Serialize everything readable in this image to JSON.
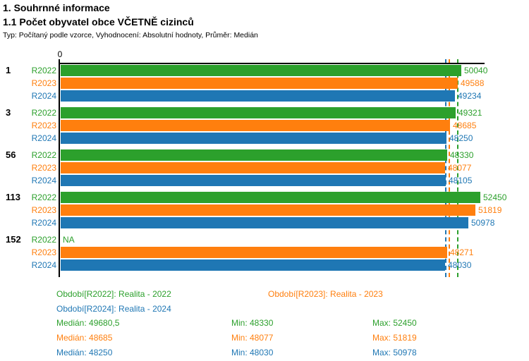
{
  "page": {
    "title_line1": "1. Souhrnné informace",
    "title_line2": "1.1 Počet obyvatel obce VČETNĚ cizinců",
    "subtitle": "Typ: Počítaný podle vzorce, Vyhodnocení: Absolutní hodnoty, Průměr: Medián"
  },
  "chart_data": {
    "type": "bar",
    "orientation": "horizontal",
    "x_origin_label": "0",
    "xlim": [
      0,
      53000
    ],
    "grid": false,
    "categories": [
      "1",
      "3",
      "56",
      "113",
      "152"
    ],
    "na_text": "NA",
    "series": [
      {
        "name": "R2022",
        "color": "#2ca02c",
        "values": [
          50040,
          49321,
          48330,
          52450,
          null
        ],
        "median": 49680.5,
        "min": 48330,
        "max": 52450
      },
      {
        "name": "R2023",
        "color": "#ff7f0e",
        "values": [
          49588,
          48685,
          48077,
          51819,
          48271
        ],
        "median": 48685,
        "min": 48077,
        "max": 51819
      },
      {
        "name": "R2024",
        "color": "#1f77b4",
        "values": [
          49234,
          48250,
          48105,
          50978,
          48030
        ],
        "median": 48250,
        "min": 48030,
        "max": 50978
      }
    ],
    "reference_lines": [
      {
        "series": "R2022",
        "value": 49680.5,
        "style": "dashed",
        "color": "#2ca02c"
      },
      {
        "series": "R2023",
        "value": 48685,
        "style": "dashed",
        "color": "#ff7f0e"
      },
      {
        "series": "R2024",
        "value": 48250,
        "style": "dashed",
        "color": "#1f77b4"
      }
    ],
    "legend": [
      {
        "label": "Období[R2022]: Realita - 2022",
        "color": "#2ca02c"
      },
      {
        "label": "Období[R2023]: Realita - 2023",
        "color": "#ff7f0e"
      },
      {
        "label": "Období[R2024]: Realita - 2024",
        "color": "#1f77b4"
      }
    ],
    "stats": [
      {
        "median_label": "Medián: 49680,5",
        "min_label": "Min: 48330",
        "max_label": "Max: 52450",
        "color": "#2ca02c"
      },
      {
        "median_label": "Medián: 48685",
        "min_label": "Min: 48077",
        "max_label": "Max: 51819",
        "color": "#ff7f0e"
      },
      {
        "median_label": "Medián: 48250",
        "min_label": "Min: 48030",
        "max_label": "Max: 50978",
        "color": "#1f77b4"
      }
    ]
  }
}
